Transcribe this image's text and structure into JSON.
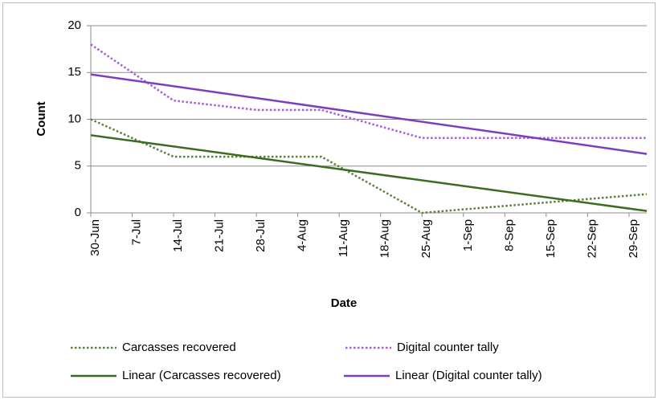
{
  "chart_data": {
    "type": "line",
    "x_label": "Date",
    "y_label": "Count",
    "xlim": [
      "30-Jun",
      "2-Oct"
    ],
    "xticks": [
      "30-Jun",
      "7-Jul",
      "14-Jul",
      "21-Jul",
      "28-Jul",
      "4-Aug",
      "11-Aug",
      "18-Aug",
      "25-Aug",
      "1-Sep",
      "8-Sep",
      "15-Sep",
      "22-Sep",
      "29-Sep"
    ],
    "ylim": [
      0,
      20
    ],
    "yticks": [
      0,
      5,
      10,
      15,
      20
    ],
    "grid": true,
    "series": [
      {
        "name": "Carcasses recovered",
        "color": "#5b7f3c",
        "dash": true,
        "x": [
          "30-Jun",
          "14-Jul",
          "8-Aug",
          "25-Aug",
          "2-Oct"
        ],
        "values": [
          10,
          6,
          6,
          0,
          2
        ]
      },
      {
        "name": "Digital counter tally",
        "color": "#a45fd6",
        "dash": true,
        "x": [
          "30-Jun",
          "14-Jul",
          "28-Jul",
          "8-Aug",
          "25-Aug",
          "2-Oct"
        ],
        "values": [
          18,
          12,
          11,
          11,
          8,
          8
        ]
      },
      {
        "name": "Linear (Carcasses recovered)",
        "color": "#3d6b21",
        "dash": false,
        "x": [
          "30-Jun",
          "2-Oct"
        ],
        "values": [
          8.3,
          0.2
        ]
      },
      {
        "name": "Linear (Digital counter tally)",
        "color": "#7a3fc0",
        "dash": false,
        "x": [
          "30-Jun",
          "2-Oct"
        ],
        "values": [
          14.8,
          6.3
        ]
      }
    ]
  }
}
